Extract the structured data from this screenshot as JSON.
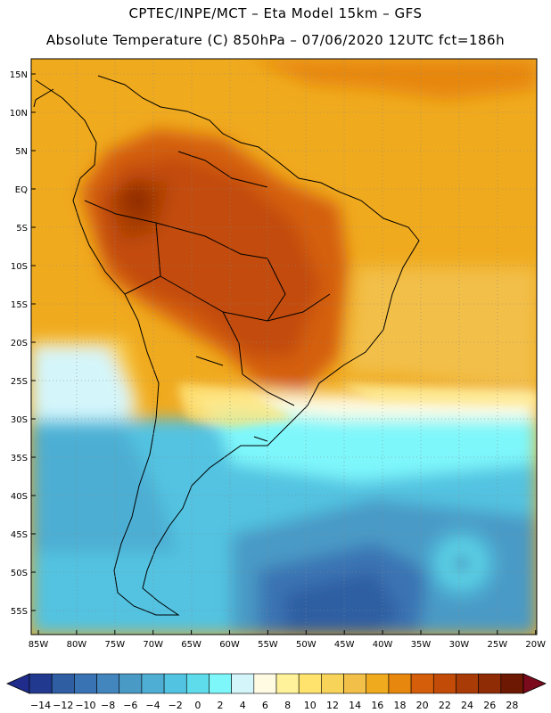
{
  "header": {
    "line1": "CPTEC/INPE/MCT –  Eta Model 15km – GFS",
    "line2": "Absolute Temperature (C) 850hPa – 07/06/2020 12UTC fct=186h"
  },
  "axes": {
    "lat_labels": [
      "15N",
      "10N",
      "5N",
      "EQ",
      "5S",
      "10S",
      "15S",
      "20S",
      "25S",
      "30S",
      "35S",
      "40S",
      "45S",
      "50S",
      "55S"
    ],
    "lon_labels": [
      "85W",
      "80W",
      "75W",
      "70W",
      "65W",
      "60W",
      "55W",
      "50W",
      "45W",
      "40W",
      "35W",
      "30W",
      "25W",
      "20W"
    ]
  },
  "colorbar": {
    "colors": [
      "#213a8f",
      "#2f5ea3",
      "#3a73b3",
      "#4385bd",
      "#4a9ac6",
      "#4eaed3",
      "#52c3e1",
      "#5fdcec",
      "#7ef7fb",
      "#d4f6fb",
      "#fffbe3",
      "#fff29a",
      "#ffe36d",
      "#f8d35a",
      "#f2bf48",
      "#f0aa1e",
      "#e7870e",
      "#d45e0a",
      "#c24c07",
      "#a93c06",
      "#8f2c05",
      "#6d1802"
    ],
    "tick_labels": [
      "-14",
      "-12",
      "-10",
      "-8",
      "-6",
      "-4",
      "-2",
      "0",
      "2",
      "4",
      "6",
      "8",
      "10",
      "12",
      "14",
      "16",
      "18",
      "20",
      "22",
      "24",
      "26",
      "28"
    ],
    "under_color": "#1f2c8c",
    "over_color": "#7a0a1c"
  }
}
